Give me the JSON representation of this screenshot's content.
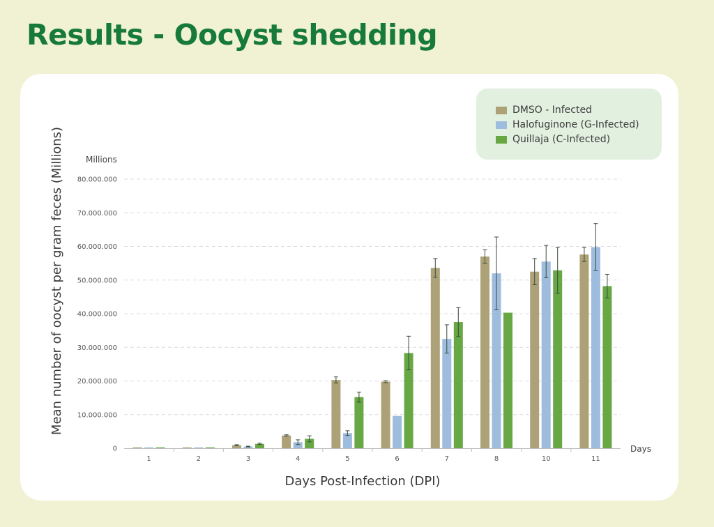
{
  "page": {
    "title": "Results - Oocyst shedding"
  },
  "legend": {
    "items": [
      {
        "label": "DMSO - Infected",
        "color": "#ada277"
      },
      {
        "label": "Halofuginone (G-Infected)",
        "color": "#9ebcde"
      },
      {
        "label": "Quillaja (C-Infected)",
        "color": "#67a844"
      }
    ]
  },
  "chart_data": {
    "type": "bar",
    "categories": [
      "1",
      "2",
      "3",
      "4",
      "5",
      "6",
      "7",
      "8",
      "10",
      "11"
    ],
    "series": [
      {
        "name": "DMSO - Infected",
        "color": "#ada277",
        "values": [
          50000,
          100000,
          900000,
          3800000,
          20300000,
          19800000,
          53600000,
          57000000,
          52500000,
          57600000
        ],
        "errors": [
          0,
          0,
          150000,
          200000,
          900000,
          300000,
          2800000,
          2000000,
          3900000,
          2100000
        ]
      },
      {
        "name": "Halofuginone (G-Infected)",
        "color": "#9ebcde",
        "values": [
          50000,
          100000,
          500000,
          1800000,
          4500000,
          9600000,
          32500000,
          52000000,
          55500000,
          59800000
        ],
        "errors": [
          0,
          0,
          100000,
          700000,
          700000,
          0,
          4200000,
          10800000,
          4800000,
          7000000
        ]
      },
      {
        "name": "Quillaja (C-Infected)",
        "color": "#67a844",
        "values": [
          50000,
          100000,
          1300000,
          2800000,
          15200000,
          28300000,
          37500000,
          40300000,
          52900000,
          48200000
        ],
        "errors": [
          0,
          0,
          200000,
          900000,
          1500000,
          5000000,
          4300000,
          0,
          6800000,
          3500000
        ]
      }
    ],
    "title": "",
    "xlabel": "Days Post-Infection (DPI)",
    "ylabel": "Mean number of oocyst per gram feces (Millions)",
    "y_unit_label": "Millions",
    "x_unit_label": "Days",
    "ylim": [
      0,
      80000000
    ],
    "yticks": [
      0,
      10000000,
      20000000,
      30000000,
      40000000,
      50000000,
      60000000,
      70000000,
      80000000
    ],
    "ytick_labels": [
      "0",
      "10.000.000",
      "20.000.000",
      "30.000.000",
      "40.000.000",
      "50.000.000",
      "60.000.000",
      "70.000.000",
      "80.000.000"
    ],
    "grid": true,
    "legend_position": "top-right"
  }
}
